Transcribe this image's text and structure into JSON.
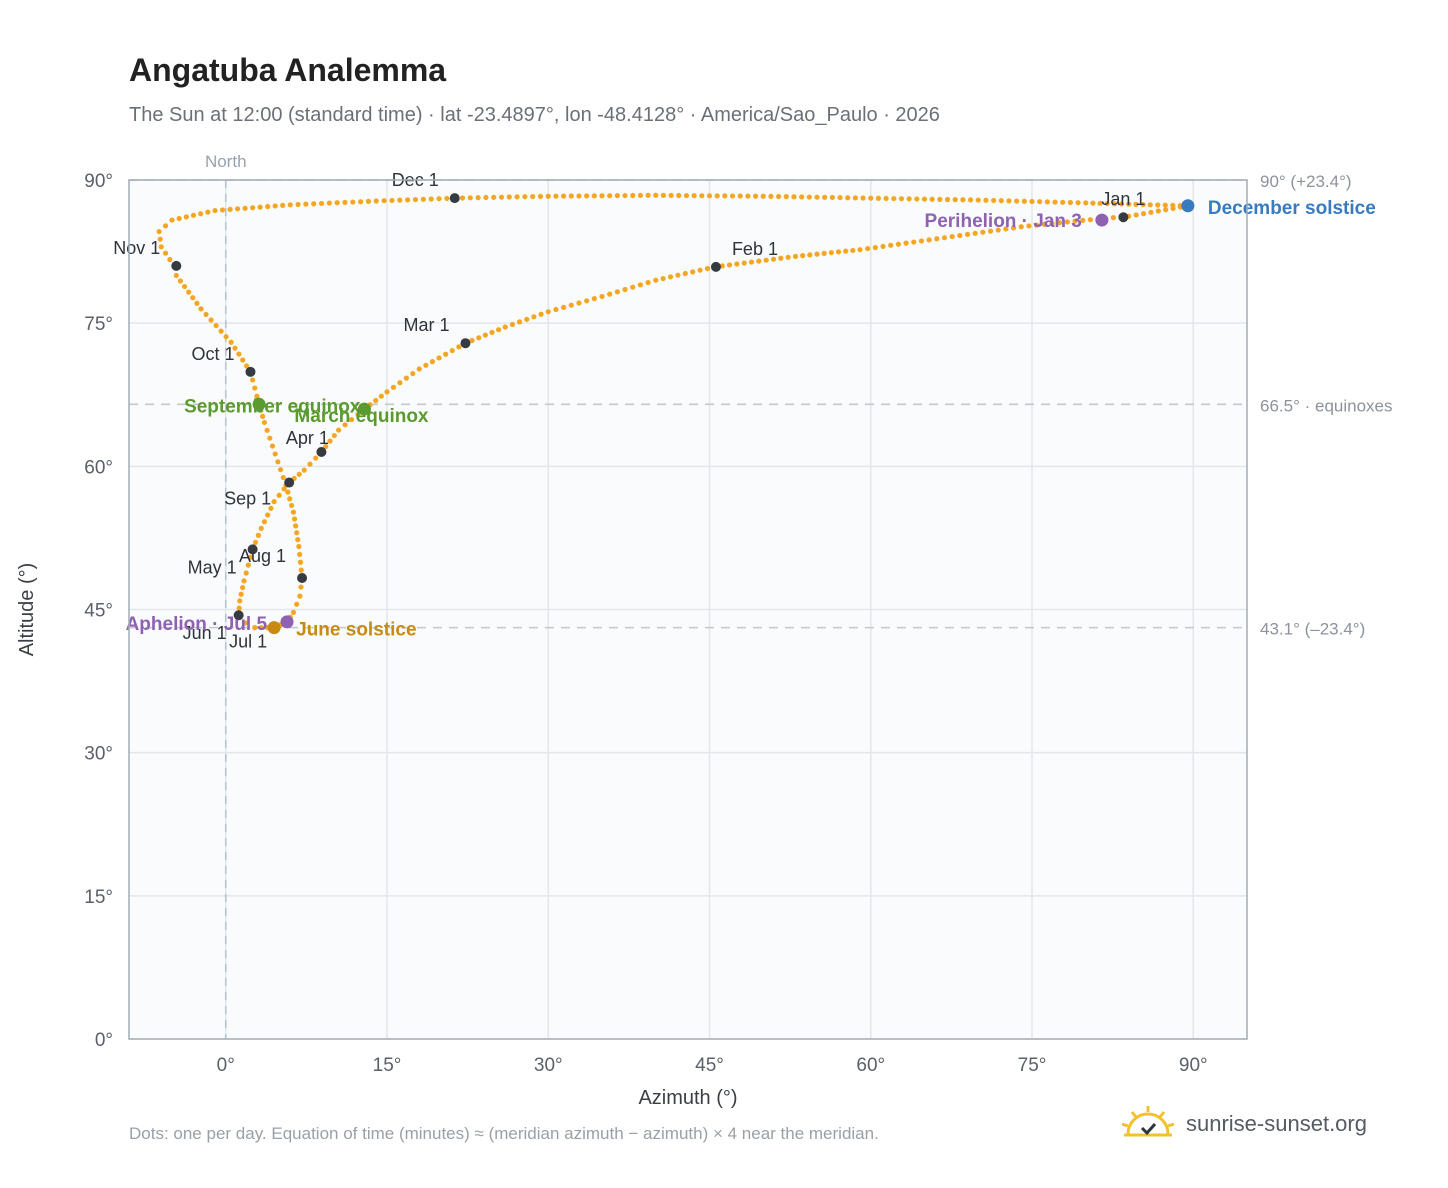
{
  "title": "Angatuba Analemma",
  "subtitle": "The Sun at 12:00 (standard time) · lat -23.4897°, lon -48.4128° · America/Sao_Paulo · 2026",
  "footnote": "Dots: one per day. Equation of time (minutes) ≈ (meridian azimuth − azimuth) × 4 near the meridian.",
  "brand": "sunrise-sunset.org",
  "colors": {
    "curve": "#f5a623",
    "month": "#363b42",
    "equinox": "#5a9a2e",
    "june": "#c98a12",
    "december": "#3a7abf",
    "apsis": "#8e62b0"
  },
  "chart_data": {
    "type": "scatter",
    "xlabel": "Azimuth (°)",
    "ylabel": "Altitude (°)",
    "xlim": [
      -9,
      95
    ],
    "ylim": [
      0,
      90
    ],
    "xticks": [
      "0°",
      "15°",
      "30°",
      "45°",
      "60°",
      "75°",
      "90°"
    ],
    "yticks": [
      "0°",
      "15°",
      "30°",
      "45°",
      "60°",
      "75°",
      "90°"
    ],
    "grid": true,
    "north_label": "North",
    "north_azimuth": 0,
    "reference_lines": [
      {
        "altitude": 90,
        "label": "90° (+23.4°)"
      },
      {
        "altitude": 66.5,
        "label": "66.5° · equinoxes"
      },
      {
        "altitude": 43.1,
        "label": "43.1° (–23.4°)"
      }
    ],
    "series": [
      {
        "key": "daily",
        "points": [
          [
            89.5,
            87.3
          ],
          [
            84.0,
            86.2
          ],
          [
            79.0,
            85.7
          ],
          [
            74.0,
            85.1
          ],
          [
            69.0,
            84.3
          ],
          [
            64.0,
            83.5
          ],
          [
            59.0,
            82.7
          ],
          [
            53.0,
            82.0
          ],
          [
            45.5,
            80.9
          ],
          [
            40.0,
            79.5
          ],
          [
            35.0,
            77.8
          ],
          [
            30.0,
            76.2
          ],
          [
            26.0,
            74.6
          ],
          [
            22.3,
            72.9
          ],
          [
            18.0,
            70.2
          ],
          [
            15.0,
            67.8
          ],
          [
            12.9,
            66.0
          ],
          [
            10.5,
            63.8
          ],
          [
            8.9,
            61.5
          ],
          [
            7.3,
            59.6
          ],
          [
            5.9,
            58.3
          ],
          [
            4.5,
            56.3
          ],
          [
            3.3,
            53.5
          ],
          [
            2.5,
            51.3
          ],
          [
            1.7,
            48.0
          ],
          [
            1.3,
            45.9
          ],
          [
            1.2,
            44.4
          ],
          [
            1.8,
            43.6
          ],
          [
            2.7,
            43.1
          ],
          [
            4.5,
            43.1
          ],
          [
            5.7,
            43.7
          ],
          [
            6.3,
            44.7
          ],
          [
            6.9,
            46.4
          ],
          [
            7.1,
            48.3
          ],
          [
            6.8,
            51.6
          ],
          [
            6.3,
            55.2
          ],
          [
            5.6,
            58.0
          ],
          [
            4.6,
            61.3
          ],
          [
            3.6,
            64.6
          ],
          [
            3.1,
            66.5
          ],
          [
            2.3,
            69.9
          ],
          [
            0.5,
            73.0
          ],
          [
            -2.3,
            76.5
          ],
          [
            -4.6,
            80.0
          ],
          [
            -4.8,
            81.0
          ],
          [
            -6.0,
            83.0
          ],
          [
            -6.2,
            84.6
          ],
          [
            -5.0,
            85.8
          ],
          [
            -1.0,
            86.8
          ],
          [
            6.0,
            87.4
          ],
          [
            14.0,
            87.8
          ],
          [
            21.3,
            88.1
          ],
          [
            30.0,
            88.3
          ],
          [
            40.0,
            88.4
          ],
          [
            50.0,
            88.3
          ],
          [
            60.0,
            88.1
          ],
          [
            70.0,
            87.9
          ],
          [
            80.0,
            87.6
          ],
          [
            86.0,
            87.4
          ],
          [
            89.5,
            87.3
          ]
        ]
      }
    ],
    "months": [
      {
        "label": "Jan 1",
        "az": 83.5,
        "alt": 86.1
      },
      {
        "label": "Feb 1",
        "az": 45.6,
        "alt": 80.9
      },
      {
        "label": "Mar 1",
        "az": 22.3,
        "alt": 72.9
      },
      {
        "label": "Apr 1",
        "az": 8.9,
        "alt": 61.5
      },
      {
        "label": "May 1",
        "az": 2.5,
        "alt": 51.3
      },
      {
        "label": "Jun 1",
        "az": 1.2,
        "alt": 44.4
      },
      {
        "label": "Jul 1",
        "az": 4.6,
        "alt": 43.1
      },
      {
        "label": "Aug 1",
        "az": 7.1,
        "alt": 48.3
      },
      {
        "label": "Sep 1",
        "az": 5.9,
        "alt": 58.3
      },
      {
        "label": "Oct 1",
        "az": 2.3,
        "alt": 69.9
      },
      {
        "label": "Nov 1",
        "az": -4.6,
        "alt": 81.0
      },
      {
        "label": "Dec 1",
        "az": 21.3,
        "alt": 88.1
      }
    ],
    "events": [
      {
        "label": "December solstice",
        "az": 89.5,
        "alt": 87.3,
        "kind": "december"
      },
      {
        "label": "Perihelion · Jan 3",
        "az": 81.5,
        "alt": 85.8,
        "kind": "apsis"
      },
      {
        "label": "March equinox",
        "az": 12.9,
        "alt": 66.0,
        "kind": "equinox"
      },
      {
        "label": "September equinox",
        "az": 3.1,
        "alt": 66.5,
        "kind": "equinox"
      },
      {
        "label": "June solstice",
        "az": 4.5,
        "alt": 43.1,
        "kind": "june"
      },
      {
        "label": "Aphelion · Jul 5",
        "az": 5.7,
        "alt": 43.7,
        "kind": "apsis"
      }
    ]
  }
}
